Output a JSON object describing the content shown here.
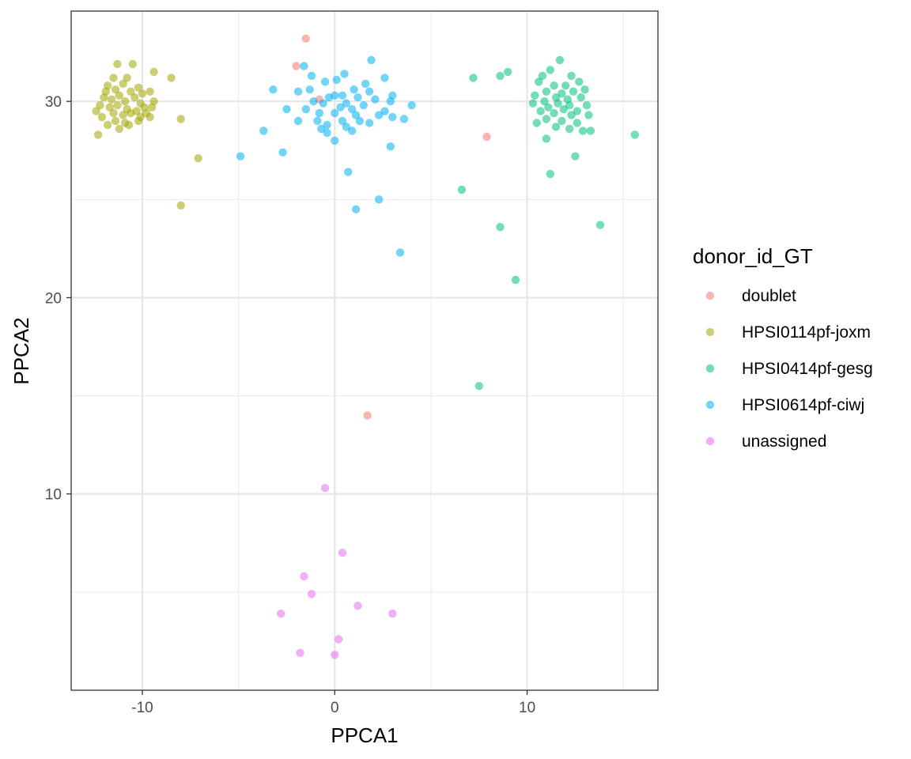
{
  "chart_data": {
    "type": "scatter",
    "xlabel": "PPCA1",
    "ylabel": "PPCA2",
    "xlim": [
      -13.7,
      16.8
    ],
    "ylim": [
      0.0,
      34.6
    ],
    "x_ticks": [
      -10,
      0,
      10
    ],
    "y_ticks": [
      10,
      20,
      30
    ],
    "x_tick_labels": [
      "-10",
      "0",
      "10"
    ],
    "y_tick_labels": [
      "10",
      "20",
      "30"
    ],
    "grid": true,
    "legend": {
      "title": "donor_id_GT",
      "position": "right"
    },
    "series": [
      {
        "name": "doublet",
        "color": "#F8766D",
        "points": [
          [
            -1.5,
            33.2
          ],
          [
            -2.0,
            31.8
          ],
          [
            -0.8,
            30.1
          ],
          [
            7.9,
            28.2
          ],
          [
            1.7,
            14.0
          ]
        ]
      },
      {
        "name": "HPSI0114pf-joxm",
        "color": "#A3A500",
        "points": [
          [
            -11.3,
            31.9
          ],
          [
            -10.5,
            31.9
          ],
          [
            -9.4,
            31.5
          ],
          [
            -11.5,
            31.2
          ],
          [
            -10.8,
            31.2
          ],
          [
            -8.5,
            31.2
          ],
          [
            -11.8,
            30.8
          ],
          [
            -11.0,
            30.9
          ],
          [
            -10.2,
            30.7
          ],
          [
            -11.9,
            30.5
          ],
          [
            -11.4,
            30.6
          ],
          [
            -10.6,
            30.5
          ],
          [
            -10.0,
            30.4
          ],
          [
            -9.6,
            30.5
          ],
          [
            -12.0,
            30.2
          ],
          [
            -11.6,
            30.1
          ],
          [
            -11.2,
            30.3
          ],
          [
            -10.9,
            30.0
          ],
          [
            -10.4,
            30.2
          ],
          [
            -10.1,
            29.9
          ],
          [
            -9.4,
            30.0
          ],
          [
            -12.2,
            29.8
          ],
          [
            -11.7,
            29.7
          ],
          [
            -11.3,
            29.8
          ],
          [
            -10.8,
            29.6
          ],
          [
            -10.3,
            29.5
          ],
          [
            -9.9,
            29.7
          ],
          [
            -9.5,
            29.7
          ],
          [
            -12.4,
            29.5
          ],
          [
            -11.5,
            29.4
          ],
          [
            -11.0,
            29.3
          ],
          [
            -10.6,
            29.4
          ],
          [
            -10.1,
            29.2
          ],
          [
            -9.8,
            29.4
          ],
          [
            -12.1,
            29.2
          ],
          [
            -11.4,
            29.0
          ],
          [
            -10.9,
            28.9
          ],
          [
            -10.2,
            29.0
          ],
          [
            -11.8,
            28.8
          ],
          [
            -10.7,
            28.8
          ],
          [
            -11.2,
            28.6
          ],
          [
            -12.3,
            28.3
          ],
          [
            -9.6,
            29.2
          ],
          [
            -8.0,
            29.1
          ],
          [
            -7.1,
            27.1
          ],
          [
            -8.0,
            24.7
          ]
        ]
      },
      {
        "name": "HPSI0414pf-gesg",
        "color": "#00BF7D",
        "points": [
          [
            11.7,
            32.1
          ],
          [
            11.2,
            31.6
          ],
          [
            7.2,
            31.2
          ],
          [
            8.6,
            31.3
          ],
          [
            9.0,
            31.5
          ],
          [
            10.8,
            31.3
          ],
          [
            12.3,
            31.3
          ],
          [
            12.7,
            31.0
          ],
          [
            10.6,
            31.0
          ],
          [
            12.0,
            30.8
          ],
          [
            11.4,
            30.8
          ],
          [
            13.0,
            30.6
          ],
          [
            11.0,
            30.5
          ],
          [
            11.8,
            30.4
          ],
          [
            12.4,
            30.5
          ],
          [
            10.4,
            30.3
          ],
          [
            11.5,
            30.2
          ],
          [
            12.1,
            30.1
          ],
          [
            12.8,
            30.2
          ],
          [
            10.9,
            30.0
          ],
          [
            11.6,
            29.9
          ],
          [
            12.2,
            29.8
          ],
          [
            13.1,
            29.8
          ],
          [
            10.3,
            29.9
          ],
          [
            11.1,
            29.7
          ],
          [
            11.9,
            29.6
          ],
          [
            12.6,
            29.5
          ],
          [
            10.7,
            29.5
          ],
          [
            11.4,
            29.4
          ],
          [
            12.3,
            29.3
          ],
          [
            13.2,
            29.3
          ],
          [
            11.0,
            29.1
          ],
          [
            11.8,
            29.0
          ],
          [
            12.6,
            28.9
          ],
          [
            10.5,
            28.9
          ],
          [
            11.5,
            28.7
          ],
          [
            12.2,
            28.6
          ],
          [
            13.3,
            28.5
          ],
          [
            12.9,
            28.5
          ],
          [
            11.0,
            28.1
          ],
          [
            15.6,
            28.3
          ],
          [
            12.5,
            27.2
          ],
          [
            11.2,
            26.3
          ],
          [
            6.6,
            25.5
          ],
          [
            8.6,
            23.6
          ],
          [
            13.8,
            23.7
          ],
          [
            9.4,
            20.9
          ],
          [
            7.5,
            15.5
          ]
        ]
      },
      {
        "name": "HPSI0614pf-ciwj",
        "color": "#00B0F6",
        "points": [
          [
            1.9,
            32.1
          ],
          [
            -1.6,
            31.8
          ],
          [
            0.5,
            31.4
          ],
          [
            -1.2,
            31.3
          ],
          [
            2.6,
            31.2
          ],
          [
            0.1,
            31.1
          ],
          [
            -0.5,
            31.0
          ],
          [
            1.6,
            30.9
          ],
          [
            -3.2,
            30.6
          ],
          [
            -1.9,
            30.5
          ],
          [
            -1.3,
            30.6
          ],
          [
            1.0,
            30.6
          ],
          [
            1.8,
            30.5
          ],
          [
            3.0,
            30.3
          ],
          [
            0.0,
            30.3
          ],
          [
            -0.3,
            30.2
          ],
          [
            0.4,
            30.3
          ],
          [
            1.2,
            30.2
          ],
          [
            2.1,
            30.1
          ],
          [
            2.9,
            30.0
          ],
          [
            -1.1,
            30.0
          ],
          [
            -0.6,
            29.9
          ],
          [
            0.6,
            29.9
          ],
          [
            1.5,
            29.8
          ],
          [
            4.0,
            29.8
          ],
          [
            -2.5,
            29.6
          ],
          [
            -1.5,
            29.6
          ],
          [
            0.3,
            29.7
          ],
          [
            0.9,
            29.6
          ],
          [
            2.6,
            29.5
          ],
          [
            -0.8,
            29.4
          ],
          [
            0.0,
            29.4
          ],
          [
            1.1,
            29.3
          ],
          [
            2.3,
            29.3
          ],
          [
            3.0,
            29.2
          ],
          [
            -1.9,
            29.0
          ],
          [
            -0.9,
            29.0
          ],
          [
            0.4,
            29.0
          ],
          [
            1.3,
            29.0
          ],
          [
            1.8,
            28.9
          ],
          [
            3.6,
            29.1
          ],
          [
            -0.4,
            28.8
          ],
          [
            0.6,
            28.7
          ],
          [
            -0.7,
            28.6
          ],
          [
            0.9,
            28.5
          ],
          [
            -3.7,
            28.5
          ],
          [
            -0.4,
            28.4
          ],
          [
            0.0,
            28.0
          ],
          [
            2.9,
            27.7
          ],
          [
            -2.7,
            27.4
          ],
          [
            -4.9,
            27.2
          ],
          [
            0.7,
            26.4
          ],
          [
            2.3,
            25.0
          ],
          [
            1.1,
            24.5
          ],
          [
            3.4,
            22.3
          ]
        ]
      },
      {
        "name": "unassigned",
        "color": "#E76BF3",
        "points": [
          [
            -0.5,
            10.3
          ],
          [
            0.4,
            7.0
          ],
          [
            -1.6,
            5.8
          ],
          [
            -1.2,
            4.9
          ],
          [
            1.2,
            4.3
          ],
          [
            -2.8,
            3.9
          ],
          [
            3.0,
            3.9
          ],
          [
            0.2,
            2.6
          ],
          [
            -1.8,
            1.9
          ],
          [
            0.0,
            1.8
          ]
        ]
      }
    ]
  }
}
